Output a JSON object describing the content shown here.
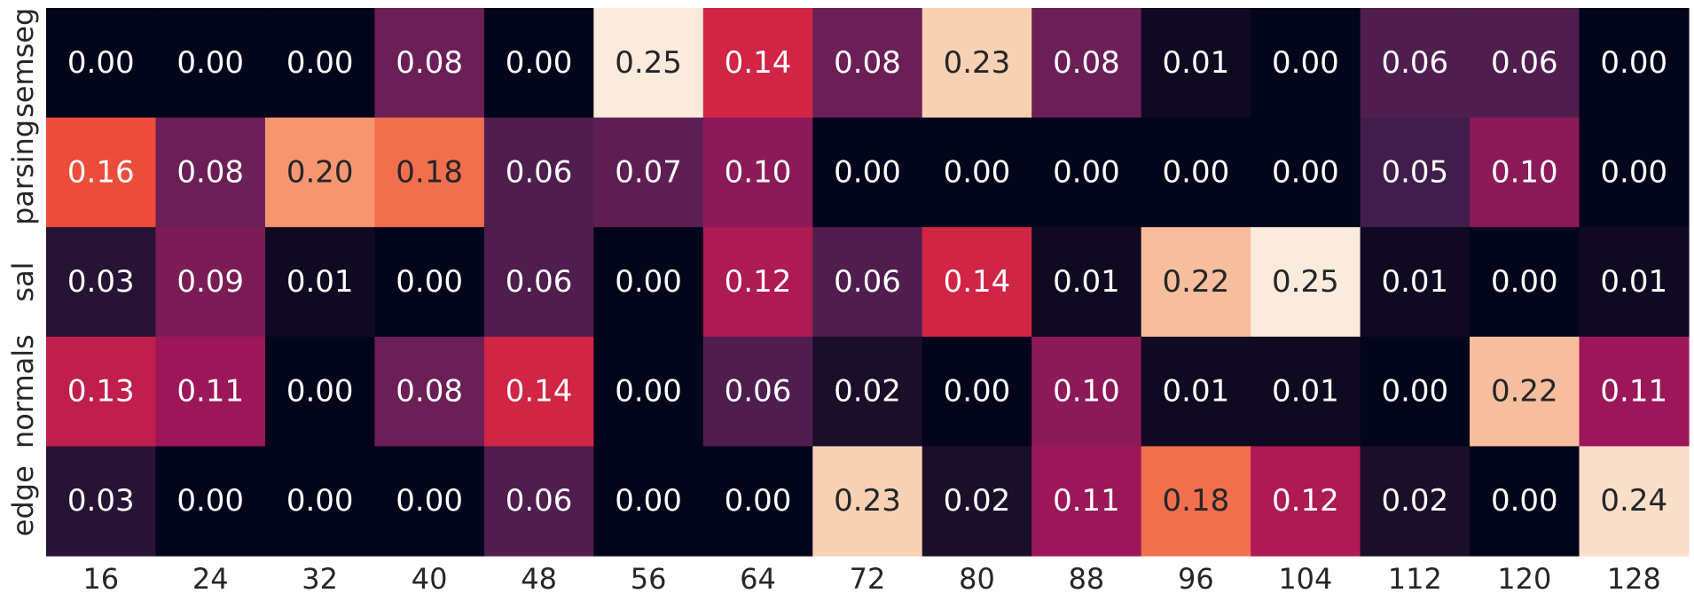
{
  "chart_data": {
    "type": "heatmap",
    "title": "",
    "xlabel": "",
    "ylabel": "",
    "x_categories": [
      "16",
      "24",
      "32",
      "40",
      "48",
      "56",
      "64",
      "72",
      "80",
      "88",
      "96",
      "104",
      "112",
      "120",
      "128"
    ],
    "y_categories": [
      "semseg",
      "parsing",
      "sal",
      "normals",
      "edge"
    ],
    "values": [
      [
        0.0,
        0.0,
        0.0,
        0.08,
        0.0,
        0.25,
        0.14,
        0.08,
        0.23,
        0.08,
        0.01,
        0.0,
        0.06,
        0.06,
        0.0
      ],
      [
        0.16,
        0.08,
        0.2,
        0.18,
        0.06,
        0.07,
        0.1,
        0.0,
        0.0,
        0.0,
        0.0,
        0.0,
        0.05,
        0.1,
        0.0
      ],
      [
        0.03,
        0.09,
        0.01,
        0.0,
        0.06,
        0.0,
        0.12,
        0.06,
        0.14,
        0.01,
        0.22,
        0.25,
        0.01,
        0.0,
        0.01
      ],
      [
        0.13,
        0.11,
        0.0,
        0.08,
        0.14,
        0.0,
        0.06,
        0.02,
        0.0,
        0.1,
        0.01,
        0.01,
        0.0,
        0.22,
        0.11
      ],
      [
        0.03,
        0.0,
        0.0,
        0.0,
        0.06,
        0.0,
        0.0,
        0.23,
        0.02,
        0.11,
        0.18,
        0.12,
        0.02,
        0.0,
        0.24
      ]
    ],
    "value_range": [
      0,
      0.25
    ],
    "colormap": "rocket",
    "colorbar": false,
    "grid": false
  }
}
